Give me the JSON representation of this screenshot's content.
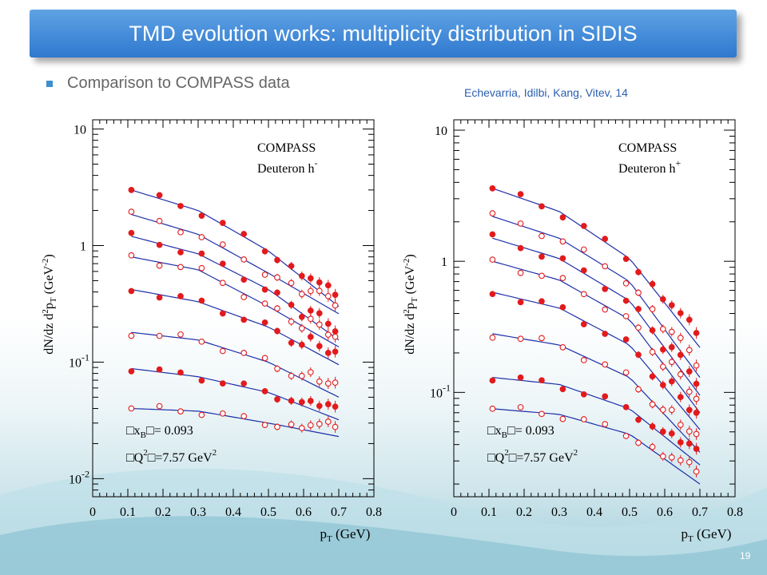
{
  "slide": {
    "title": "TMD evolution works: multiplicity distribution in SIDIS",
    "bullet": "Comparison to COMPASS data",
    "citation": "Echevarria, Idilbi, Kang, Vitev, 14",
    "page_number": "19"
  },
  "colors": {
    "title_bg": "#2f78cf",
    "bullet": "#3d8fcf",
    "citation": "#2a5fb0",
    "data_points": "#e31a1c",
    "theory_curve": "#1f2fa8"
  },
  "chart_data": [
    {
      "type": "scatter",
      "title": "",
      "xlabel": "p_T (GeV)",
      "xlabel_parts": {
        "main": "p",
        "sub": "T",
        "unit": "(GeV)"
      },
      "ylabel": "dN/dz d²p_T (GeV⁻²)",
      "ylabel_parts": {
        "p1": "dN/dz d",
        "sup1": "2",
        "p2": "p",
        "sub1": "T",
        "p3": " (GeV",
        "sup2": "-2",
        "p4": ")"
      },
      "xlim": [
        0,
        0.8
      ],
      "ylim": [
        0.007,
        12
      ],
      "yscale": "log",
      "x_ticks": [
        "0",
        "0.1",
        "0.2",
        "0.3",
        "0.4",
        "0.5",
        "0.6",
        "0.7",
        "0.8"
      ],
      "y_ticks": [
        {
          "base": "10",
          "exp": "",
          "value": 10
        },
        {
          "base": "1",
          "exp": "",
          "value": 1
        },
        {
          "base": "10",
          "exp": "-1",
          "value": 0.1
        },
        {
          "base": "10",
          "exp": "-2",
          "value": 0.01
        }
      ],
      "legend_lines": {
        "l1": "COMPASS",
        "l2": "Deuteron  h",
        "l2_sup": "-"
      },
      "annotation": {
        "xb_text": "x",
        "xb_sub": "B",
        "xb_val": "= 0.093",
        "q2_text": "Q",
        "q2_sup": "2",
        "q2_val": "=7.57 GeV",
        "q2_unit_sup": "2",
        "box_glyph": "□"
      },
      "x": [
        0.11,
        0.19,
        0.25,
        0.31,
        0.37,
        0.43,
        0.49,
        0.525,
        0.565,
        0.595,
        0.62,
        0.645,
        0.67,
        0.69
      ],
      "series": [
        {
          "filled": true,
          "amp": 3.0,
          "curve": [
            [
              0.11,
              3.0
            ],
            [
              0.3,
              2.0
            ],
            [
              0.5,
              0.9
            ],
            [
              0.7,
              0.3
            ]
          ]
        },
        {
          "filled": false,
          "amp": 1.85,
          "curve": [
            [
              0.11,
              1.85
            ],
            [
              0.3,
              1.25
            ],
            [
              0.5,
              0.58
            ],
            [
              0.7,
              0.26
            ]
          ]
        },
        {
          "filled": true,
          "amp": 1.2,
          "curve": [
            [
              0.11,
              1.2
            ],
            [
              0.3,
              0.85
            ],
            [
              0.5,
              0.42
            ],
            [
              0.7,
              0.155
            ]
          ]
        },
        {
          "filled": false,
          "amp": 0.73,
          "curve": [
            [
              0.11,
              0.8
            ],
            [
              0.3,
              0.62
            ],
            [
              0.5,
              0.3
            ],
            [
              0.7,
              0.135
            ]
          ]
        },
        {
          "filled": true,
          "amp": 0.38,
          "curve": [
            [
              0.11,
              0.42
            ],
            [
              0.3,
              0.33
            ],
            [
              0.5,
              0.2
            ],
            [
              0.7,
              0.095
            ]
          ]
        },
        {
          "filled": false,
          "amp": 0.17,
          "curve": [
            [
              0.11,
              0.18
            ],
            [
              0.3,
              0.155
            ],
            [
              0.5,
              0.1
            ],
            [
              0.7,
              0.05
            ]
          ]
        },
        {
          "filled": true,
          "amp": 0.078,
          "curve": [
            [
              0.11,
              0.088
            ],
            [
              0.3,
              0.075
            ],
            [
              0.5,
              0.055
            ],
            [
              0.7,
              0.032
            ]
          ]
        },
        {
          "filled": false,
          "amp": 0.043,
          "curve": [
            [
              0.11,
              0.04
            ],
            [
              0.3,
              0.038
            ],
            [
              0.5,
              0.03
            ],
            [
              0.7,
              0.023
            ]
          ]
        }
      ]
    },
    {
      "type": "scatter",
      "title": "",
      "xlabel": "p_T (GeV)",
      "xlabel_parts": {
        "main": "p",
        "sub": "T",
        "unit": "(GeV)"
      },
      "ylabel": "dN/dz d²p_T (GeV⁻²)",
      "ylabel_parts": {
        "p1": "dN/dz d",
        "sup1": "2",
        "p2": "p",
        "sub1": "T",
        "p3": " (GeV",
        "sup2": "-2",
        "p4": ")"
      },
      "xlim": [
        0,
        0.8
      ],
      "ylim": [
        0.016,
        12
      ],
      "yscale": "log",
      "x_ticks": [
        "0",
        "0.1",
        "0.2",
        "0.3",
        "0.4",
        "0.5",
        "0.6",
        "0.7",
        "0.8"
      ],
      "y_ticks": [
        {
          "base": "10",
          "exp": "",
          "value": 10
        },
        {
          "base": "1",
          "exp": "",
          "value": 1
        },
        {
          "base": "10",
          "exp": "-1",
          "value": 0.1
        }
      ],
      "legend_lines": {
        "l1": "COMPASS",
        "l2": "Deuteron  h",
        "l2_sup": "+"
      },
      "annotation": {
        "xb_text": "x",
        "xb_sub": "B",
        "xb_val": "= 0.093",
        "q2_text": "Q",
        "q2_sup": "2",
        "q2_val": "=7.57 GeV",
        "q2_unit_sup": "2",
        "box_glyph": "□"
      },
      "x": [
        0.11,
        0.19,
        0.25,
        0.31,
        0.37,
        0.43,
        0.49,
        0.525,
        0.565,
        0.595,
        0.62,
        0.645,
        0.67,
        0.69
      ],
      "series": [
        {
          "filled": true,
          "amp": 3.7,
          "curve": [
            [
              0.11,
              3.6
            ],
            [
              0.3,
              2.4
            ],
            [
              0.5,
              1.05
            ],
            [
              0.7,
              0.22
            ]
          ]
        },
        {
          "filled": false,
          "amp": 2.4,
          "curve": [
            [
              0.11,
              2.2
            ],
            [
              0.3,
              1.5
            ],
            [
              0.5,
              0.7
            ],
            [
              0.7,
              0.13
            ]
          ]
        },
        {
          "filled": true,
          "amp": 1.6,
          "curve": [
            [
              0.11,
              1.5
            ],
            [
              0.3,
              1.05
            ],
            [
              0.5,
              0.5
            ],
            [
              0.7,
              0.095
            ]
          ]
        },
        {
          "filled": false,
          "amp": 1.05,
          "curve": [
            [
              0.11,
              1.0
            ],
            [
              0.3,
              0.72
            ],
            [
              0.5,
              0.36
            ],
            [
              0.7,
              0.07
            ]
          ]
        },
        {
          "filled": true,
          "amp": 0.59,
          "curve": [
            [
              0.11,
              0.58
            ],
            [
              0.3,
              0.44
            ],
            [
              0.5,
              0.23
            ],
            [
              0.7,
              0.052
            ]
          ]
        },
        {
          "filled": false,
          "amp": 0.27,
          "curve": [
            [
              0.11,
              0.28
            ],
            [
              0.3,
              0.23
            ],
            [
              0.5,
              0.13
            ],
            [
              0.7,
              0.035
            ]
          ]
        },
        {
          "filled": true,
          "amp": 0.13,
          "curve": [
            [
              0.11,
              0.13
            ],
            [
              0.3,
              0.115
            ],
            [
              0.5,
              0.075
            ],
            [
              0.7,
              0.028
            ]
          ]
        },
        {
          "filled": false,
          "amp": 0.072,
          "curve": [
            [
              0.11,
              0.075
            ],
            [
              0.3,
              0.068
            ],
            [
              0.5,
              0.048
            ],
            [
              0.7,
              0.02
            ]
          ]
        }
      ]
    }
  ]
}
